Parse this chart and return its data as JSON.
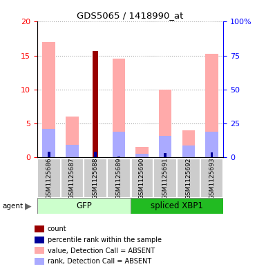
{
  "title": "GDS5065 / 1418990_at",
  "samples": [
    "GSM1125686",
    "GSM1125687",
    "GSM1125688",
    "GSM1125689",
    "GSM1125690",
    "GSM1125691",
    "GSM1125692",
    "GSM1125693"
  ],
  "count_values": [
    0,
    0,
    15.7,
    0,
    0,
    0,
    0,
    0
  ],
  "percentile_values": [
    4.0,
    0.2,
    4.0,
    0.3,
    0.2,
    3.0,
    0.2,
    3.7
  ],
  "absent_value_values": [
    17.0,
    6.0,
    0,
    14.5,
    1.5,
    10.0,
    4.0,
    15.3
  ],
  "absent_rank_values": [
    4.2,
    1.8,
    0,
    3.8,
    0.5,
    3.1,
    1.7,
    3.8
  ],
  "ylim_left": [
    0,
    20
  ],
  "ylim_right": [
    0,
    100
  ],
  "yticks_left": [
    0,
    5,
    10,
    15,
    20
  ],
  "yticks_right": [
    0,
    25,
    50,
    75,
    100
  ],
  "ytick_labels_right": [
    "0",
    "25",
    "50",
    "75",
    "100%"
  ],
  "color_count": "#990000",
  "color_percentile": "#000099",
  "color_absent_value": "#ffaaaa",
  "color_absent_rank": "#aaaaff",
  "gfp_color_light": "#ccffcc",
  "gfp_color_dark": "#44cc44",
  "xbp1_color_dark": "#22bb22",
  "group_gfp_label": "GFP",
  "group_xbp1_label": "spliced XBP1",
  "bar_width": 0.55,
  "gray_box_color": "#cccccc",
  "legend_items": [
    {
      "label": "count",
      "color": "#990000"
    },
    {
      "label": "percentile rank within the sample",
      "color": "#000099"
    },
    {
      "label": "value, Detection Call = ABSENT",
      "color": "#ffaaaa"
    },
    {
      "label": "rank, Detection Call = ABSENT",
      "color": "#aaaaff"
    }
  ]
}
